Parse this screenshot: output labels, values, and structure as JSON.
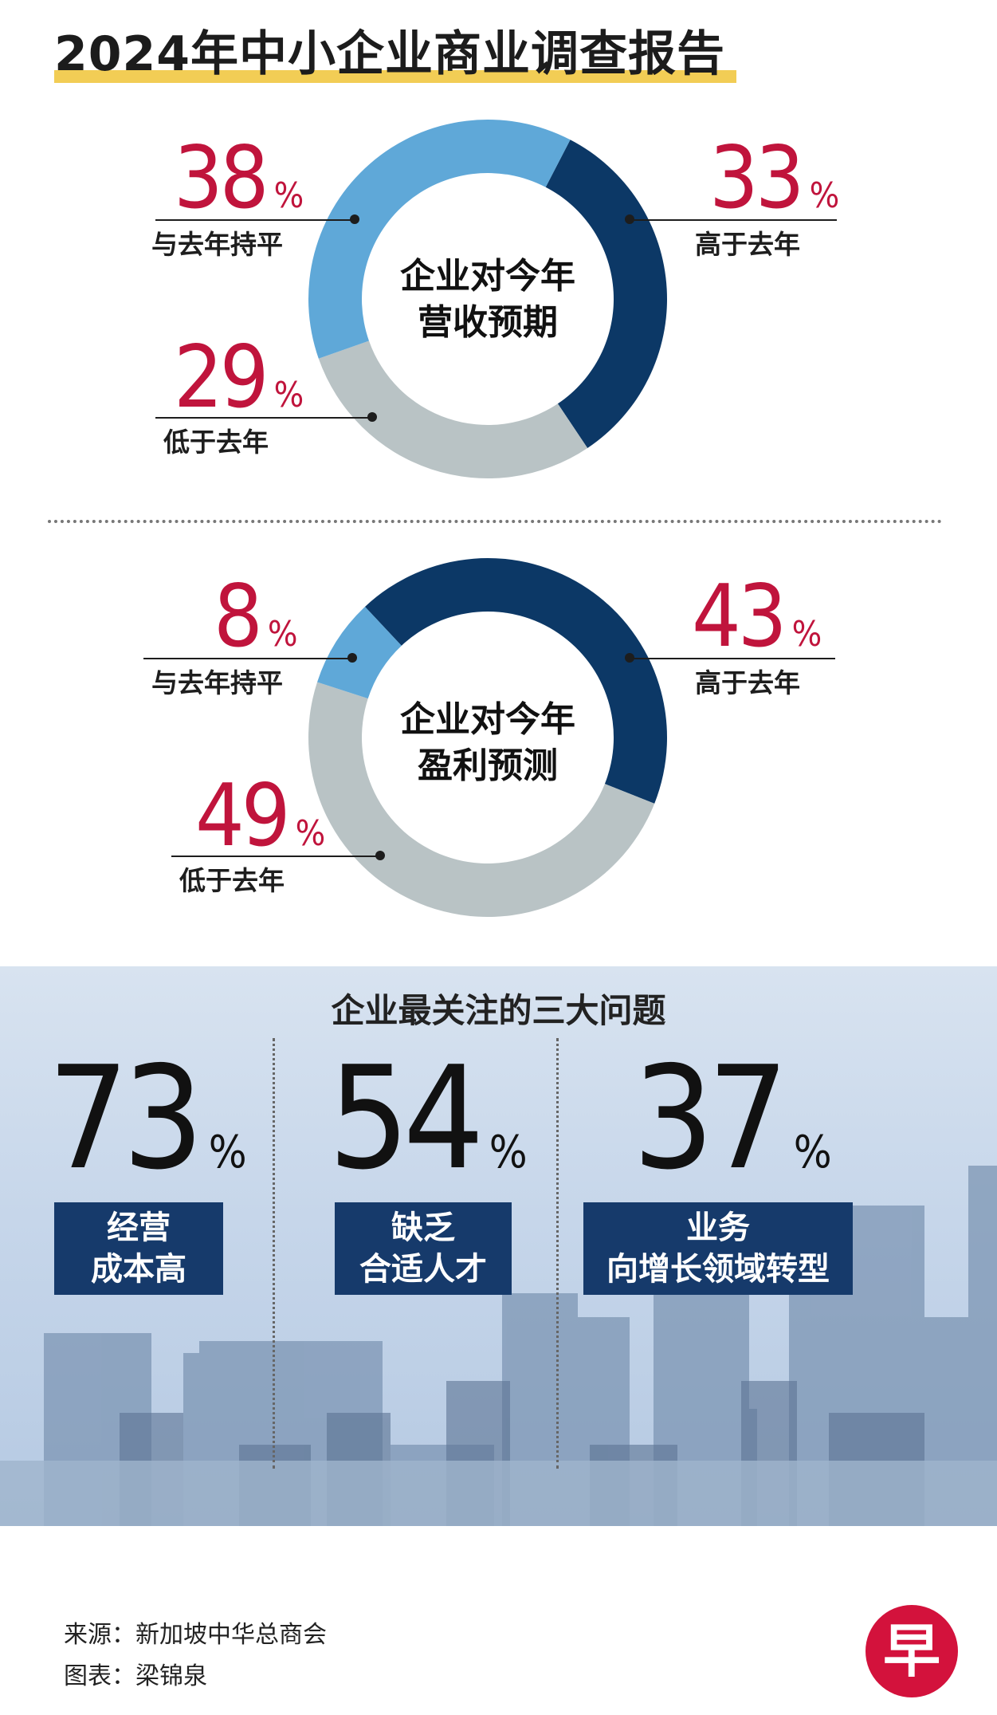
{
  "title": "2024年中小企业商业调查报告",
  "colors": {
    "dark_blue": "#0c3866",
    "light_blue": "#5fa8d8",
    "gray": "#b9c3c5",
    "pct_red": "#c0143c",
    "tag_blue": "#163a6b",
    "title_underline": "#f2cd55"
  },
  "chart_data": [
    {
      "type": "pie",
      "title": "企业对今年营收预期",
      "title_lines": [
        "企业对今年",
        "营收预期"
      ],
      "unit": "%",
      "slices": [
        {
          "label": "高于去年",
          "value": 33,
          "color": "#0c3866"
        },
        {
          "label": "低于去年",
          "value": 29,
          "color": "#b9c3c5"
        },
        {
          "label": "与去年持平",
          "value": 38,
          "color": "#5fa8d8"
        }
      ]
    },
    {
      "type": "pie",
      "title": "企业对今年盈利预测",
      "title_lines": [
        "企业对今年",
        "盈利预测"
      ],
      "unit": "%",
      "slices": [
        {
          "label": "高于去年",
          "value": 43,
          "color": "#0c3866"
        },
        {
          "label": "低于去年",
          "value": 49,
          "color": "#b9c3c5"
        },
        {
          "label": "与去年持平",
          "value": 8,
          "color": "#5fa8d8"
        }
      ]
    }
  ],
  "concerns": {
    "title": "企业最关注的三大问题",
    "unit": "%",
    "items": [
      {
        "value": "73",
        "lines": [
          "经营",
          "成本高"
        ]
      },
      {
        "value": "54",
        "lines": [
          "缺乏",
          "合适人才"
        ]
      },
      {
        "value": "37",
        "lines": [
          "业务",
          "向增长领域转型"
        ]
      }
    ]
  },
  "footer": {
    "source": "来源：新加坡中华总商会",
    "credit": "图表：梁锦泉",
    "logo": "早"
  }
}
